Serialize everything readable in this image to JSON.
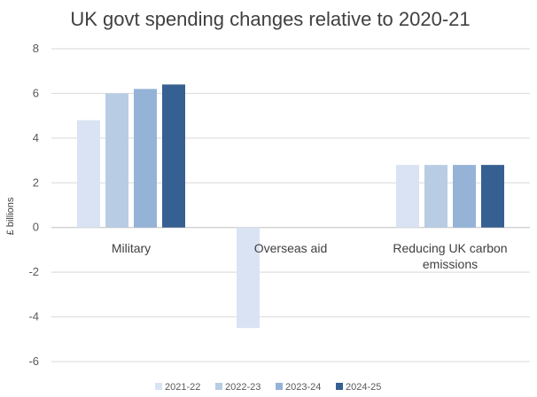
{
  "chart_data": {
    "type": "bar",
    "title": "UK govt spending changes relative to 2020-21",
    "xlabel": "",
    "ylabel": "£ billions",
    "ylim": [
      -6,
      8
    ],
    "yticks": [
      8,
      6,
      4,
      2,
      0,
      -2,
      -4,
      -6
    ],
    "grid": true,
    "legend_position": "bottom",
    "categories": [
      {
        "lines": [
          "Military"
        ]
      },
      {
        "lines": [
          "Overseas aid"
        ]
      },
      {
        "lines": [
          "Reducing UK carbon",
          "emissions"
        ]
      }
    ],
    "series": [
      {
        "name": "2021-22",
        "color": "#dae3f3",
        "values": [
          4.8,
          -4.5,
          2.8
        ]
      },
      {
        "name": "2022-23",
        "color": "#b8cce4",
        "values": [
          6.0,
          0,
          2.8
        ]
      },
      {
        "name": "2023-24",
        "color": "#95b3d7",
        "values": [
          6.2,
          0,
          2.8
        ]
      },
      {
        "name": "2024-25",
        "color": "#376092",
        "values": [
          6.4,
          0,
          2.8
        ]
      }
    ]
  }
}
